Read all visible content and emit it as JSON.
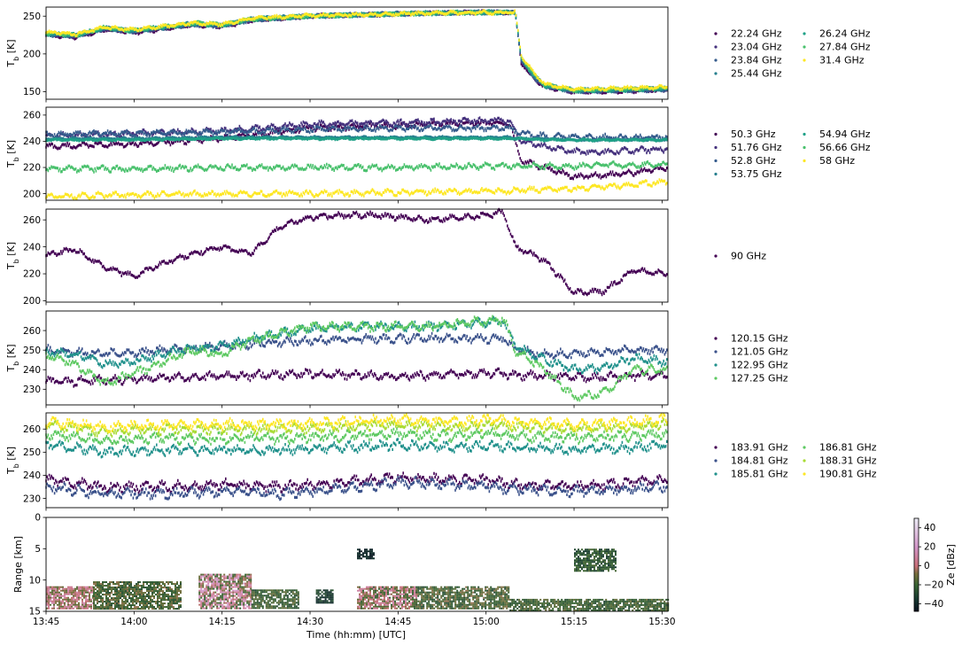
{
  "figure": {
    "xlabel": "Time (hh:mm) [UTC]",
    "xticks": [
      "13:45",
      "14:00",
      "14:15",
      "14:30",
      "14:45",
      "15:00",
      "15:15",
      "15:30"
    ],
    "time_range_minutes": [
      825,
      931
    ]
  },
  "chart_data": [
    {
      "type": "scatter",
      "ylabel": "T_b [K]",
      "ylim": [
        140,
        262
      ],
      "yticks": [
        150,
        200,
        250
      ],
      "legend": {
        "placement": "right",
        "columns": 2,
        "col2_start": 4
      },
      "x_knots": [
        825,
        830,
        835,
        840,
        850,
        855,
        860,
        870,
        880,
        890,
        900,
        905,
        906,
        908,
        910,
        915,
        920,
        931
      ],
      "series": [
        {
          "name": "22.24 GHz",
          "color": "#440154",
          "y": [
            225,
            222,
            232,
            228,
            238,
            236,
            244,
            250,
            252,
            254,
            255,
            255,
            188,
            168,
            156,
            150,
            150,
            152
          ]
        },
        {
          "name": "23.04 GHz",
          "color": "#46327e",
          "y": [
            226,
            223,
            233,
            229,
            239,
            237,
            245,
            250,
            252,
            254,
            255,
            255,
            190,
            170,
            157,
            150,
            151,
            153
          ]
        },
        {
          "name": "23.84 GHz",
          "color": "#365c8d",
          "y": [
            226,
            224,
            233,
            230,
            239,
            237,
            245,
            250,
            252,
            254,
            255,
            255,
            191,
            170,
            157,
            151,
            151,
            153
          ]
        },
        {
          "name": "25.44 GHz",
          "color": "#277f8e",
          "y": [
            227,
            224,
            234,
            230,
            240,
            238,
            246,
            250,
            252,
            254,
            255,
            255,
            193,
            172,
            158,
            151,
            152,
            154
          ]
        },
        {
          "name": "26.24 GHz",
          "color": "#1fa187",
          "y": [
            227,
            225,
            234,
            231,
            240,
            238,
            246,
            250,
            252,
            254,
            255,
            255,
            194,
            173,
            158,
            152,
            152,
            154
          ]
        },
        {
          "name": "27.84 GHz",
          "color": "#4ac16d",
          "y": [
            228,
            225,
            235,
            231,
            241,
            239,
            246,
            250,
            252,
            254,
            255,
            255,
            196,
            174,
            159,
            152,
            153,
            155
          ]
        },
        {
          "name": "31.4 GHz",
          "color": "#fde725",
          "y": [
            229,
            226,
            235,
            232,
            241,
            239,
            247,
            251,
            252,
            254,
            255,
            255,
            198,
            176,
            160,
            153,
            154,
            156
          ]
        }
      ]
    },
    {
      "type": "scatter",
      "ylabel": "T_b [K]",
      "ylim": [
        195,
        266
      ],
      "yticks": [
        200,
        220,
        240,
        260
      ],
      "legend": {
        "placement": "right",
        "columns": 2,
        "col2_start": 4
      },
      "x_knots": [
        825,
        840,
        855,
        870,
        885,
        900,
        904,
        906,
        910,
        915,
        920,
        925,
        931
      ],
      "series": [
        {
          "name": "50.3 GHz",
          "color": "#440154",
          "y": [
            236,
            238,
            242,
            250,
            252,
            254,
            254,
            225,
            220,
            213,
            214,
            216,
            220
          ]
        },
        {
          "name": "51.76 GHz",
          "color": "#46327e",
          "y": [
            244,
            246,
            248,
            253,
            254,
            256,
            256,
            240,
            236,
            232,
            232,
            233,
            234
          ]
        },
        {
          "name": "52.8 GHz",
          "color": "#365c8d",
          "y": [
            245,
            246,
            247,
            249,
            250,
            250,
            250,
            246,
            244,
            243,
            243,
            243,
            243
          ]
        },
        {
          "name": "53.75 GHz",
          "color": "#277f8e",
          "y": [
            242,
            242,
            243,
            243,
            243,
            243,
            243,
            242,
            242,
            241,
            241,
            241,
            241
          ]
        },
        {
          "name": "54.94 GHz",
          "color": "#1fa187",
          "y": [
            241,
            241,
            242,
            242,
            242,
            242,
            242,
            242,
            241,
            241,
            241,
            241,
            241
          ]
        },
        {
          "name": "56.66 GHz",
          "color": "#4ac16d",
          "y": [
            219,
            219,
            220,
            220,
            220,
            221,
            221,
            221,
            221,
            221,
            222,
            222,
            222
          ]
        },
        {
          "name": "58 GHz",
          "color": "#fde725",
          "y": [
            198,
            199,
            200,
            200,
            201,
            202,
            202,
            203,
            203,
            204,
            205,
            207,
            209
          ]
        }
      ]
    },
    {
      "type": "scatter",
      "ylabel": "T_b [K]",
      "ylim": [
        199,
        268
      ],
      "yticks": [
        200,
        220,
        240,
        260
      ],
      "legend": {
        "placement": "right",
        "columns": 1,
        "col2_start": 9
      },
      "x_knots": [
        825,
        830,
        835,
        840,
        845,
        850,
        855,
        860,
        865,
        870,
        880,
        890,
        900,
        903,
        905,
        910,
        915,
        920,
        925,
        931
      ],
      "series": [
        {
          "name": "90 GHz",
          "color": "#440154",
          "y": [
            234,
            238,
            225,
            218,
            228,
            235,
            240,
            235,
            255,
            262,
            264,
            260,
            263,
            266,
            240,
            230,
            206,
            207,
            222,
            220
          ]
        }
      ]
    },
    {
      "type": "scatter",
      "ylabel": "T_b [K]",
      "ylim": [
        222,
        270
      ],
      "yticks": [
        230,
        240,
        250,
        260
      ],
      "legend": {
        "placement": "right",
        "columns": 1,
        "col2_start": 9
      },
      "x_knots": [
        825,
        830,
        835,
        840,
        845,
        850,
        855,
        860,
        870,
        880,
        890,
        900,
        903,
        905,
        910,
        915,
        920,
        925,
        931
      ],
      "series": [
        {
          "name": "120.15 GHz",
          "color": "#440154",
          "y": [
            234,
            234,
            235,
            235,
            236,
            236,
            237,
            237,
            238,
            237,
            237,
            238,
            238,
            237,
            237,
            236,
            236,
            237,
            237
          ]
        },
        {
          "name": "121.05 GHz",
          "color": "#3b528b",
          "y": [
            250,
            249,
            248,
            249,
            250,
            251,
            252,
            253,
            255,
            256,
            256,
            256,
            256,
            250,
            248,
            248,
            249,
            250,
            250
          ]
        },
        {
          "name": "122.95 GHz",
          "color": "#21918c",
          "y": [
            249,
            248,
            243,
            244,
            248,
            251,
            252,
            256,
            261,
            262,
            262,
            264,
            265,
            252,
            245,
            240,
            241,
            246,
            244
          ]
        },
        {
          "name": "127.25 GHz",
          "color": "#5ec962",
          "y": [
            247,
            243,
            233,
            238,
            244,
            250,
            248,
            255,
            262,
            262,
            262,
            265,
            266,
            250,
            240,
            226,
            228,
            240,
            240
          ]
        }
      ]
    },
    {
      "type": "scatter",
      "ylabel": "T_b [K]",
      "ylim": [
        226,
        267
      ],
      "yticks": [
        230,
        240,
        250,
        260
      ],
      "legend": {
        "placement": "right",
        "columns": 2,
        "col2_start": 3
      },
      "x_knots": [
        825,
        835,
        845,
        855,
        865,
        875,
        885,
        895,
        900,
        905,
        915,
        925,
        931
      ],
      "series": [
        {
          "name": "183.91 GHz",
          "color": "#440154",
          "y": [
            238,
            235,
            235,
            236,
            235,
            237,
            239,
            238,
            238,
            236,
            235,
            237,
            238
          ]
        },
        {
          "name": "184.81 GHz",
          "color": "#3b528b",
          "y": [
            235,
            232,
            232,
            233,
            232,
            234,
            237,
            236,
            235,
            234,
            233,
            234,
            235
          ]
        },
        {
          "name": "185.81 GHz",
          "color": "#21918c",
          "y": [
            253,
            250,
            251,
            251,
            251,
            252,
            253,
            252,
            253,
            252,
            251,
            252,
            253
          ]
        },
        {
          "name": "186.81 GHz",
          "color": "#5ec962",
          "y": [
            258,
            255,
            256,
            256,
            256,
            257,
            258,
            257,
            258,
            257,
            256,
            257,
            258
          ]
        },
        {
          "name": "188.31 GHz",
          "color": "#a8db34",
          "y": [
            262,
            259,
            260,
            260,
            260,
            261,
            262,
            261,
            262,
            261,
            260,
            261,
            262
          ]
        },
        {
          "name": "190.81 GHz",
          "color": "#fde725",
          "y": [
            263,
            261,
            262,
            262,
            262,
            263,
            264,
            263,
            264,
            263,
            262,
            263,
            264
          ]
        }
      ]
    },
    {
      "type": "heatmap",
      "ylabel": "Range [km]",
      "ylim": [
        15,
        0
      ],
      "yticks": [
        0,
        5,
        10,
        15
      ],
      "colorbar": {
        "label": "Ze [dBz]",
        "ticks": [
          40,
          20,
          0,
          -20,
          -40
        ],
        "range": [
          -48,
          50
        ]
      },
      "cloud_regions": [
        {
          "t": [
            825,
            833
          ],
          "r": [
            11,
            14.5
          ],
          "ze": [
            -15,
            15
          ]
        },
        {
          "t": [
            833,
            848
          ],
          "r": [
            10.2,
            14.5
          ],
          "ze": [
            -30,
            -5
          ]
        },
        {
          "t": [
            851,
            860
          ],
          "r": [
            9,
            14.5
          ],
          "ze": [
            -25,
            25
          ]
        },
        {
          "t": [
            860,
            868
          ],
          "r": [
            11.5,
            14.5
          ],
          "ze": [
            -30,
            -10
          ]
        },
        {
          "t": [
            871,
            874
          ],
          "r": [
            11.5,
            13.5
          ],
          "ze": [
            -40,
            -25
          ]
        },
        {
          "t": [
            878,
            888
          ],
          "r": [
            11,
            14.5
          ],
          "ze": [
            -25,
            15
          ]
        },
        {
          "t": [
            888,
            904
          ],
          "r": [
            11,
            14.5
          ],
          "ze": [
            -30,
            -5
          ]
        },
        {
          "t": [
            904,
            931
          ],
          "r": [
            13,
            14.8
          ],
          "ze": [
            -30,
            -10
          ]
        },
        {
          "t": [
            915,
            922
          ],
          "r": [
            5,
            8.5
          ],
          "ze": [
            -35,
            -15
          ]
        },
        {
          "t": [
            878,
            881
          ],
          "r": [
            5,
            6.5
          ],
          "ze": [
            -45,
            -35
          ]
        }
      ]
    }
  ]
}
